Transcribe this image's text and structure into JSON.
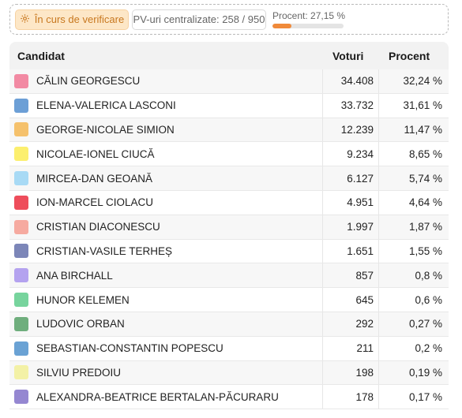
{
  "status": {
    "verify_label": "În curs de verificare",
    "pv_label": "PV-uri centralizate: 258 / 950",
    "progress_label": "Procent: 27,15 %",
    "progress_percent": 27.15,
    "progress_color": "#f08a3a"
  },
  "table": {
    "headers": {
      "candidate": "Candidat",
      "votes": "Voturi",
      "percent": "Procent"
    },
    "rows": [
      {
        "name": "CĂLIN GEORGESCU",
        "votes": "34.408",
        "percent": "32,24 %",
        "color": "#f28aa3"
      },
      {
        "name": "ELENA-VALERICA LASCONI",
        "votes": "33.732",
        "percent": "31,61 %",
        "color": "#6c9fd6"
      },
      {
        "name": "GEORGE-NICOLAE SIMION",
        "votes": "12.239",
        "percent": "11,47 %",
        "color": "#f5c16c"
      },
      {
        "name": "NICOLAE-IONEL CIUCĂ",
        "votes": "9.234",
        "percent": "8,65 %",
        "color": "#fcef6e"
      },
      {
        "name": "MIRCEA-DAN GEOANĂ",
        "votes": "6.127",
        "percent": "5,74 %",
        "color": "#a8daf5"
      },
      {
        "name": "ION-MARCEL CIOLACU",
        "votes": "4.951",
        "percent": "4,64 %",
        "color": "#ee4d5b"
      },
      {
        "name": "CRISTIAN DIACONESCU",
        "votes": "1.997",
        "percent": "1,87 %",
        "color": "#f6aaa0"
      },
      {
        "name": "CRISTIAN-VASILE TERHEȘ",
        "votes": "1.651",
        "percent": "1,55 %",
        "color": "#7c86b8"
      },
      {
        "name": "ANA BIRCHALL",
        "votes": "857",
        "percent": "0,8 %",
        "color": "#b4a2ef"
      },
      {
        "name": "HUNOR KELEMEN",
        "votes": "645",
        "percent": "0,6 %",
        "color": "#77d49d"
      },
      {
        "name": "LUDOVIC ORBAN",
        "votes": "292",
        "percent": "0,27 %",
        "color": "#6fae7d"
      },
      {
        "name": "SEBASTIAN-CONSTANTIN POPESCU",
        "votes": "211",
        "percent": "0,2 %",
        "color": "#6aa2d4"
      },
      {
        "name": "SILVIU PREDOIU",
        "votes": "198",
        "percent": "0,19 %",
        "color": "#f3f1a6"
      },
      {
        "name": "ALEXANDRA-BEATRICE BERTALAN-PĂCURARU",
        "votes": "178",
        "percent": "0,17 %",
        "color": "#9587d1"
      }
    ]
  }
}
